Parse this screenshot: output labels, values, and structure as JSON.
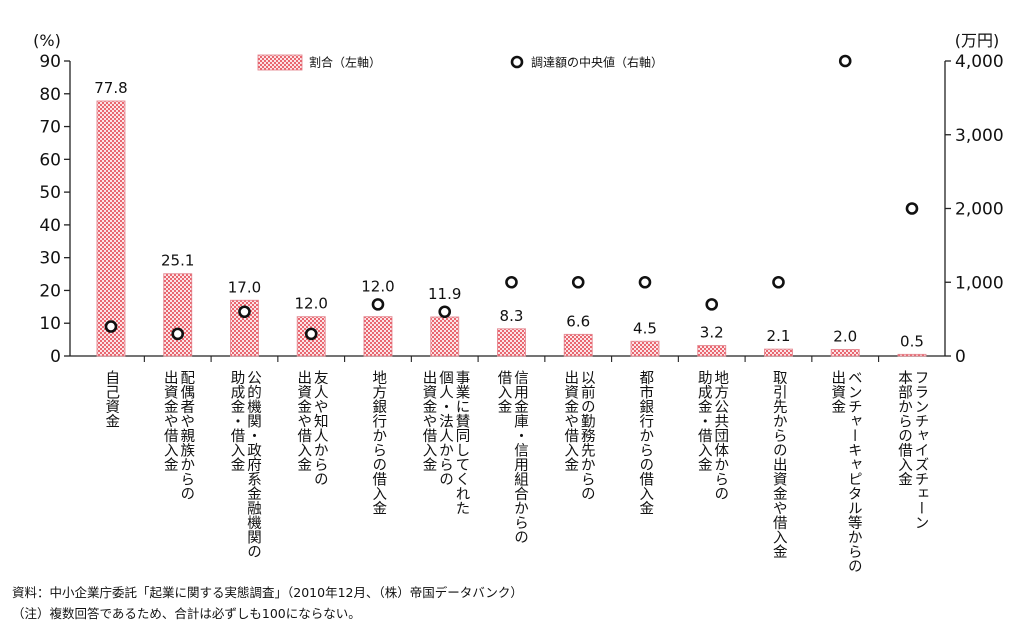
{
  "chart_data": {
    "type": "bar",
    "categories": [
      "自己資金",
      "配偶者や親族からの\n出資金や借入金",
      "公的機関・政府系金融機関の\n助成金・借入金",
      "友人や知人からの\n出資金や借入金",
      "地方銀行からの借入金",
      "事業に賛同してくれた\n個人・法人からの\n出資金や借入金",
      "信用金庫・信用組合からの\n借入金",
      "以前の勤務先からの\n出資金や借入金",
      "都市銀行からの借入金",
      "地方公共団体からの\n助成金・借入金",
      "取引先からの出資金や借入金",
      "ベンチャーキャピタル等からの\n出資金",
      "フランチャイズチェーン\n本部からの借入金"
    ],
    "series": [
      {
        "name": "割合（左軸）",
        "axis": "left",
        "mark": "bar",
        "values": [
          77.8,
          25.1,
          17.0,
          12.0,
          12.0,
          11.9,
          8.3,
          6.6,
          4.5,
          3.2,
          2.1,
          2.0,
          0.5
        ]
      },
      {
        "name": "調達額の中央値（右軸）",
        "axis": "right",
        "mark": "circle",
        "values": [
          400,
          300,
          600,
          300,
          700,
          600,
          1000,
          1000,
          1000,
          700,
          1000,
          4000,
          2000
        ]
      }
    ],
    "data_labels": [
      "77.8",
      "25.1",
      "17.0",
      "12.0",
      "12.0",
      "11.9",
      "8.3",
      "6.6",
      "4.5",
      "3.2",
      "2.1",
      "2.0",
      "0.5"
    ],
    "y_left": {
      "unit": "(%)",
      "ylim": [
        0,
        90
      ],
      "ticks": [
        0,
        10,
        20,
        30,
        40,
        50,
        60,
        70,
        80,
        90
      ],
      "tick_labels": [
        "0",
        "10",
        "20",
        "30",
        "40",
        "50",
        "60",
        "70",
        "80",
        "90"
      ]
    },
    "y_right": {
      "unit": "(万円)",
      "ylim": [
        0,
        4000
      ],
      "ticks": [
        0,
        1000,
        2000,
        3000,
        4000
      ],
      "tick_labels": [
        "0",
        "1,000",
        "2,000",
        "3,000",
        "4,000"
      ]
    },
    "legend": {
      "position": "top"
    },
    "grid": false,
    "colors": {
      "bar_fill": "#fbe4e7",
      "bar_dots": "#e2343f",
      "bar_outline": "#e58a93",
      "marker_fill": "#ffffff",
      "marker_outline": "#111111",
      "axis": "#222222"
    }
  },
  "notes": {
    "source": "資料：中小企業庁委託「起業に関する実態調査」（2010年12月、（株）帝国データバンク）",
    "note": "（注）複数回答であるため、合計は必ずしも100にならない。"
  }
}
